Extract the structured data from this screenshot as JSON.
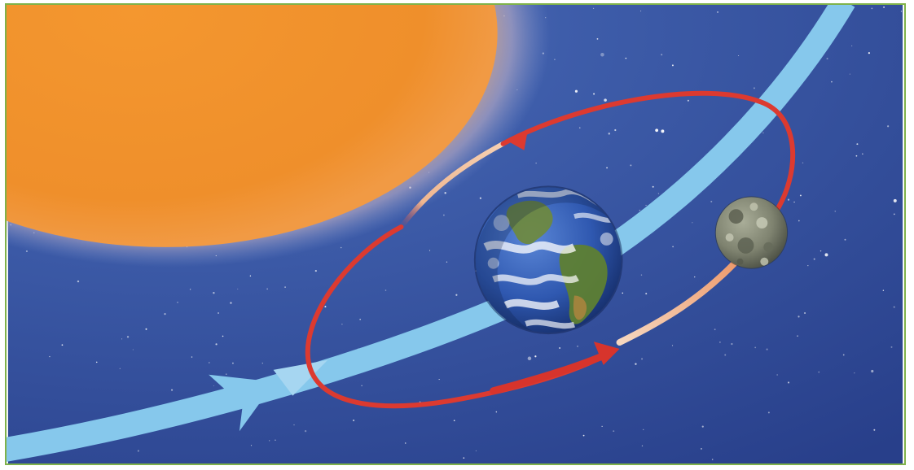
{
  "diagram": {
    "subject": "earth-moon-system-orbiting-sun",
    "bodies": [
      "sun",
      "earth",
      "moon"
    ],
    "paths": [
      "earth-orbit-path",
      "moon-orbit-path"
    ],
    "colors": {
      "space": "#2f4f9c",
      "sun": "#f0922e",
      "earth_orbit": "#86c8ec",
      "moon_orbit": "#dc3a30",
      "moon_orbit_faded": "#f3b690",
      "frame_border": "#7fb24a"
    }
  }
}
